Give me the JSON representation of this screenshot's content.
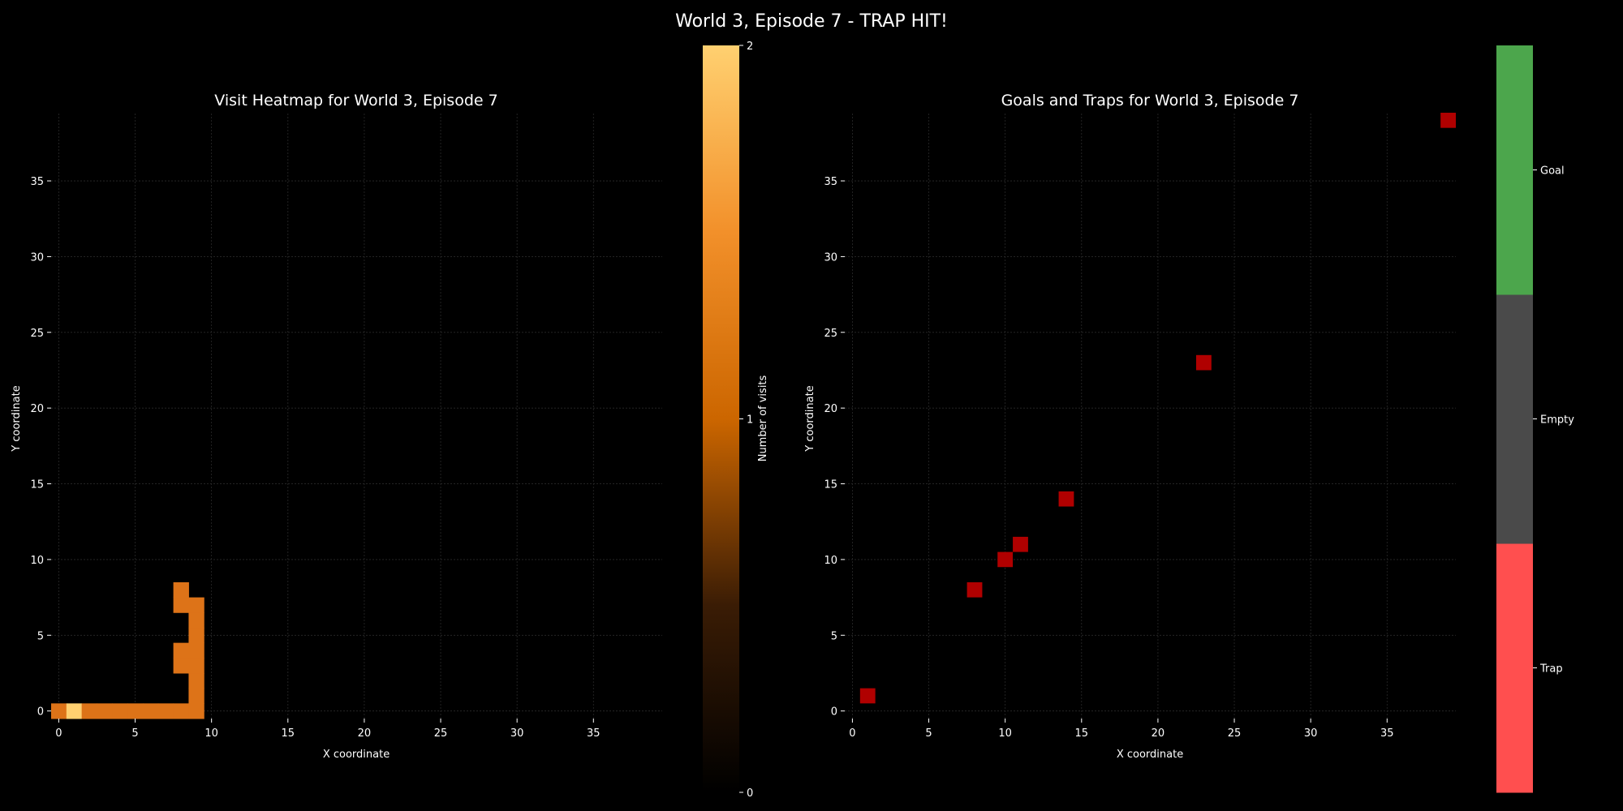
{
  "figure": {
    "title": "World 3, Episode 7 - TRAP HIT!",
    "background": "#030303",
    "text_color": "#ffffff",
    "grid_color": "#2a2a2a"
  },
  "chart_data": [
    {
      "type": "heatmap",
      "title": "Visit Heatmap for World 3, Episode 7",
      "xlabel": "X coordinate",
      "ylabel": "Y coordinate",
      "xlim": [
        -0.5,
        39.5
      ],
      "ylim": [
        -0.5,
        39.5
      ],
      "xticks": [
        0,
        5,
        10,
        15,
        20,
        25,
        30,
        35
      ],
      "yticks": [
        0,
        5,
        10,
        15,
        20,
        25,
        30,
        35
      ],
      "grid": true,
      "colormap": "copper-to-yellow",
      "colorbar": {
        "label": "Number of visits",
        "ticks": [
          0,
          1,
          2
        ],
        "vmin": 0,
        "vmax": 2
      },
      "cells": [
        {
          "x": 0,
          "y": 0,
          "value": 1
        },
        {
          "x": 1,
          "y": 0,
          "value": 2
        },
        {
          "x": 2,
          "y": 0,
          "value": 1
        },
        {
          "x": 3,
          "y": 0,
          "value": 1
        },
        {
          "x": 4,
          "y": 0,
          "value": 1
        },
        {
          "x": 5,
          "y": 0,
          "value": 1
        },
        {
          "x": 6,
          "y": 0,
          "value": 1
        },
        {
          "x": 7,
          "y": 0,
          "value": 1
        },
        {
          "x": 8,
          "y": 0,
          "value": 1
        },
        {
          "x": 9,
          "y": 0,
          "value": 1
        },
        {
          "x": 9,
          "y": 1,
          "value": 1
        },
        {
          "x": 9,
          "y": 2,
          "value": 1
        },
        {
          "x": 9,
          "y": 3,
          "value": 1
        },
        {
          "x": 9,
          "y": 4,
          "value": 1
        },
        {
          "x": 9,
          "y": 5,
          "value": 1
        },
        {
          "x": 9,
          "y": 6,
          "value": 1
        },
        {
          "x": 9,
          "y": 7,
          "value": 1
        },
        {
          "x": 8,
          "y": 3,
          "value": 1
        },
        {
          "x": 8,
          "y": 4,
          "value": 1
        },
        {
          "x": 8,
          "y": 7,
          "value": 1
        },
        {
          "x": 8,
          "y": 8,
          "value": 1
        }
      ]
    },
    {
      "type": "heatmap",
      "title": "Goals and Traps for World 3, Episode 7",
      "xlabel": "X coordinate",
      "ylabel": "Y coordinate",
      "xlim": [
        -0.5,
        39.5
      ],
      "ylim": [
        -0.5,
        39.5
      ],
      "xticks": [
        0,
        5,
        10,
        15,
        20,
        25,
        30,
        35
      ],
      "yticks": [
        0,
        5,
        10,
        15,
        20,
        25,
        30,
        35
      ],
      "grid": true,
      "categories": [
        "Trap",
        "Empty",
        "Goal"
      ],
      "category_colors": [
        "#ff4f4f",
        "#4a4a4a",
        "#4ca64c"
      ],
      "trap_cell_color": "#b00000",
      "traps": [
        {
          "x": 1,
          "y": 1
        },
        {
          "x": 8,
          "y": 8
        },
        {
          "x": 10,
          "y": 10
        },
        {
          "x": 11,
          "y": 11
        },
        {
          "x": 14,
          "y": 14
        },
        {
          "x": 23,
          "y": 23
        },
        {
          "x": 39,
          "y": 39
        }
      ],
      "goals": []
    }
  ]
}
